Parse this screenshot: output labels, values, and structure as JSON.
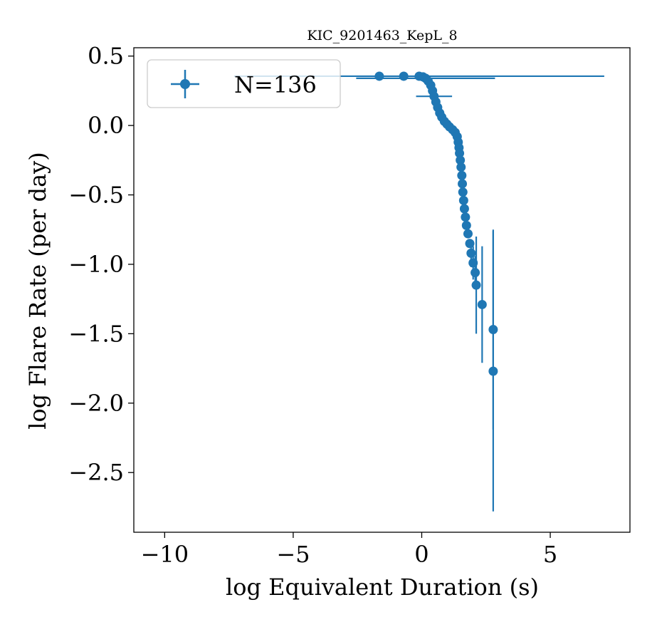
{
  "chart_data": {
    "type": "scatter",
    "title": "KIC_9201463_KepL_8",
    "xlabel": "log Equivalent Duration (s)",
    "ylabel": "log Flare Rate (per day)",
    "xlim": [
      -11.2,
      8.1
    ],
    "ylim": [
      -2.93,
      0.56
    ],
    "xticks": [
      -10,
      -5,
      0,
      5
    ],
    "xtick_labels": [
      "−10",
      "−5",
      "0",
      "5"
    ],
    "yticks": [
      0.5,
      0.0,
      -0.5,
      -1.0,
      -1.5,
      -2.0,
      -2.5
    ],
    "ytick_labels": [
      "0.5",
      "0.0",
      "−0.5",
      "−1.0",
      "−1.5",
      "−2.0",
      "−2.5"
    ],
    "color": "#1f77b4",
    "legend": {
      "label": "N=136",
      "placement": "upper-left"
    },
    "series": [
      {
        "name": "N=136",
        "points": [
          {
            "x": -1.65,
            "y": 0.355,
            "xerr": 0,
            "yerr": 0
          },
          {
            "x": -0.7,
            "y": 0.355,
            "xerr": 0,
            "yerr": 0
          },
          {
            "x": -0.1,
            "y": 0.355,
            "xerr": 7.2,
            "yerr": 0
          },
          {
            "x": 0.05,
            "y": 0.35,
            "xerr": 0,
            "yerr": 0
          },
          {
            "x": 0.15,
            "y": 0.34,
            "xerr": 2.7,
            "yerr": 0
          },
          {
            "x": 0.25,
            "y": 0.32,
            "xerr": 0,
            "yerr": 0
          },
          {
            "x": 0.35,
            "y": 0.29,
            "xerr": 0,
            "yerr": 0
          },
          {
            "x": 0.42,
            "y": 0.25,
            "xerr": 0,
            "yerr": 0
          },
          {
            "x": 0.48,
            "y": 0.21,
            "xerr": 0.7,
            "yerr": 0
          },
          {
            "x": 0.55,
            "y": 0.17,
            "xerr": 0,
            "yerr": 0
          },
          {
            "x": 0.62,
            "y": 0.13,
            "xerr": 0,
            "yerr": 0
          },
          {
            "x": 0.7,
            "y": 0.09,
            "xerr": 0,
            "yerr": 0
          },
          {
            "x": 0.78,
            "y": 0.06,
            "xerr": 0,
            "yerr": 0
          },
          {
            "x": 0.88,
            "y": 0.03,
            "xerr": 0,
            "yerr": 0
          },
          {
            "x": 0.98,
            "y": 0.01,
            "xerr": 0,
            "yerr": 0
          },
          {
            "x": 1.08,
            "y": -0.01,
            "xerr": 0,
            "yerr": 0
          },
          {
            "x": 1.2,
            "y": -0.03,
            "xerr": 0,
            "yerr": 0
          },
          {
            "x": 1.3,
            "y": -0.05,
            "xerr": 0,
            "yerr": 0
          },
          {
            "x": 1.38,
            "y": -0.08,
            "xerr": 0,
            "yerr": 0
          },
          {
            "x": 1.42,
            "y": -0.12,
            "xerr": 0,
            "yerr": 0
          },
          {
            "x": 1.45,
            "y": -0.16,
            "xerr": 0,
            "yerr": 0
          },
          {
            "x": 1.47,
            "y": -0.2,
            "xerr": 0,
            "yerr": 0
          },
          {
            "x": 1.5,
            "y": -0.25,
            "xerr": 0,
            "yerr": 0
          },
          {
            "x": 1.53,
            "y": -0.3,
            "xerr": 0,
            "yerr": 0
          },
          {
            "x": 1.56,
            "y": -0.36,
            "xerr": 0,
            "yerr": 0
          },
          {
            "x": 1.58,
            "y": -0.42,
            "xerr": 0,
            "yerr": 0
          },
          {
            "x": 1.6,
            "y": -0.48,
            "xerr": 0,
            "yerr": 0
          },
          {
            "x": 1.63,
            "y": -0.54,
            "xerr": 0,
            "yerr": 0
          },
          {
            "x": 1.66,
            "y": -0.6,
            "xerr": 0,
            "yerr": 0
          },
          {
            "x": 1.7,
            "y": -0.66,
            "xerr": 0,
            "yerr": 0
          },
          {
            "x": 1.74,
            "y": -0.72,
            "xerr": 0,
            "yerr": 0
          },
          {
            "x": 1.8,
            "y": -0.78,
            "xerr": 0,
            "yerr": 0
          },
          {
            "x": 1.87,
            "y": -0.85,
            "xerr": 0,
            "yerr": 0
          },
          {
            "x": 1.92,
            "y": -0.92,
            "xerr": 0,
            "yerr": 0.1
          },
          {
            "x": 2.0,
            "y": -0.99,
            "xerr": 0,
            "yerr": 0.12
          },
          {
            "x": 2.08,
            "y": -1.06,
            "xerr": 0,
            "yerr": 0.12
          },
          {
            "x": 2.12,
            "y": -1.15,
            "xerr": 0,
            "yerr": 0.35
          },
          {
            "x": 2.35,
            "y": -1.29,
            "xerr": 0,
            "yerr": 0.42
          },
          {
            "x": 2.78,
            "y": -1.47,
            "xerr": 0,
            "yerr": 0.72
          },
          {
            "x": 2.78,
            "y": -1.77,
            "xerr": 0,
            "yerr": 1.01
          }
        ]
      }
    ]
  }
}
